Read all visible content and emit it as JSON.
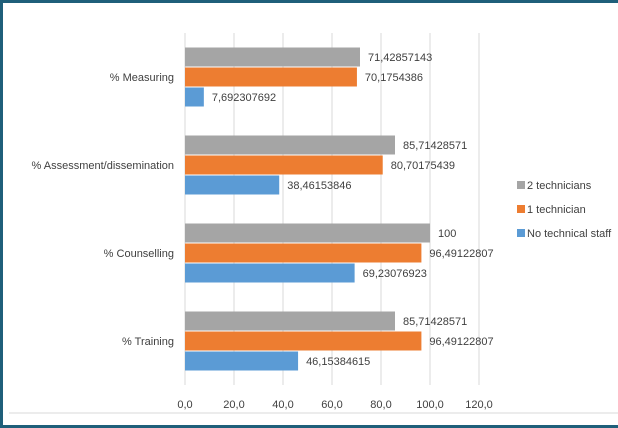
{
  "chart_data": {
    "type": "bar",
    "orientation": "horizontal",
    "categories": [
      "% Measuring",
      "% Assessment/dissemination",
      "% Counselling",
      "% Training"
    ],
    "series": [
      {
        "name": "2 technicians",
        "color": "#a5a5a5",
        "values": [
          71.42857143,
          85.71428571,
          100,
          85.71428571
        ],
        "labels": [
          "71,42857143",
          "85,71428571",
          "100",
          "85,71428571"
        ]
      },
      {
        "name": "1 technician",
        "color": "#ed7d31",
        "values": [
          70.1754386,
          80.70175439,
          96.49122807,
          96.49122807
        ],
        "labels": [
          "70,1754386",
          "80,70175439",
          "96,49122807",
          "96,49122807"
        ]
      },
      {
        "name": "No technical staff",
        "color": "#5b9bd5",
        "values": [
          7.692307692,
          38.46153846,
          69.23076923,
          46.15384615
        ],
        "labels": [
          "7,692307692",
          "38,46153846",
          "69,23076923",
          "46,15384615"
        ]
      }
    ],
    "xlim": [
      0,
      120
    ],
    "x_ticks": [
      "0,0",
      "20,0",
      "40,0",
      "60,0",
      "80,0",
      "100,0",
      "120,0"
    ],
    "grid": true,
    "legend_position": "right",
    "title": "",
    "xlabel": "",
    "ylabel": ""
  }
}
